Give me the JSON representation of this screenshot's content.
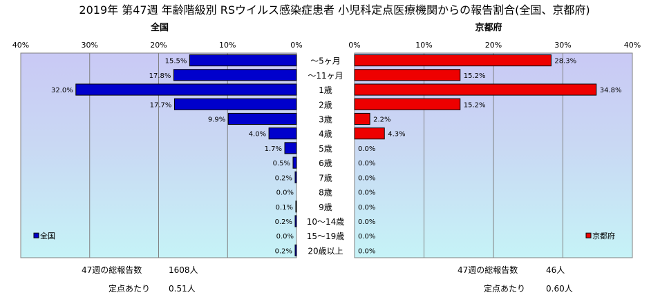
{
  "title": "2019年 第47週 年齢階級別 RSウイルス感染症患者 小児科定点医療機関からの報告割合(全国、京都府)",
  "chart_data": [
    {
      "type": "bar",
      "orientation": "horizontal",
      "title": "全国",
      "xlim": [
        0,
        40
      ],
      "x_direction": "reversed",
      "xticks": [
        "0%",
        "10%",
        "20%",
        "30%",
        "40%"
      ],
      "legend": "bottom-left",
      "categories": [
        "～5ヶ月",
        "～11ヶ月",
        "1歳",
        "2歳",
        "3歳",
        "4歳",
        "5歳",
        "6歳",
        "7歳",
        "8歳",
        "9歳",
        "10～14歳",
        "15～19歳",
        "20歳以上"
      ],
      "series": [
        {
          "name": "全国",
          "color": "#0000cc",
          "values": [
            15.5,
            17.8,
            32.0,
            17.7,
            9.9,
            4.0,
            1.7,
            0.5,
            0.2,
            0.0,
            0.1,
            0.2,
            0.0,
            0.2
          ],
          "labels": [
            "15.5%",
            "17.8%",
            "32.0%",
            "17.7%",
            "9.9%",
            "4.0%",
            "1.7%",
            "0.5%",
            "0.2%",
            "0.0%",
            "0.1%",
            "0.2%",
            "0.0%",
            "0.2%"
          ]
        }
      ]
    },
    {
      "type": "bar",
      "orientation": "horizontal",
      "title": "京都府",
      "xlim": [
        0,
        40
      ],
      "xticks": [
        "0%",
        "10%",
        "20%",
        "30%",
        "40%"
      ],
      "legend": "bottom-right",
      "categories": [
        "～5ヶ月",
        "～11ヶ月",
        "1歳",
        "2歳",
        "3歳",
        "4歳",
        "5歳",
        "6歳",
        "7歳",
        "8歳",
        "9歳",
        "10～14歳",
        "15～19歳",
        "20歳以上"
      ],
      "series": [
        {
          "name": "京都府",
          "color": "#ee0000",
          "values": [
            28.3,
            15.2,
            34.8,
            15.2,
            2.2,
            4.3,
            0.0,
            0.0,
            0.0,
            0.0,
            0.0,
            0.0,
            0.0,
            0.0
          ],
          "labels": [
            "28.3%",
            "15.2%",
            "34.8%",
            "15.2%",
            "2.2%",
            "4.3%",
            "0.0%",
            "0.0%",
            "0.0%",
            "0.0%",
            "0.0%",
            "0.0%",
            "0.0%",
            "0.0%"
          ]
        }
      ]
    }
  ],
  "footer": {
    "national_total_label": "47週の総報告数",
    "national_total_value": "1608人",
    "national_per_label": "定点あたり",
    "national_per_value": "0.51人",
    "kyoto_total_label": "47週の総報告数",
    "kyoto_total_value": "46人",
    "kyoto_per_label": "定点あたり",
    "kyoto_per_value": "0.60人"
  }
}
